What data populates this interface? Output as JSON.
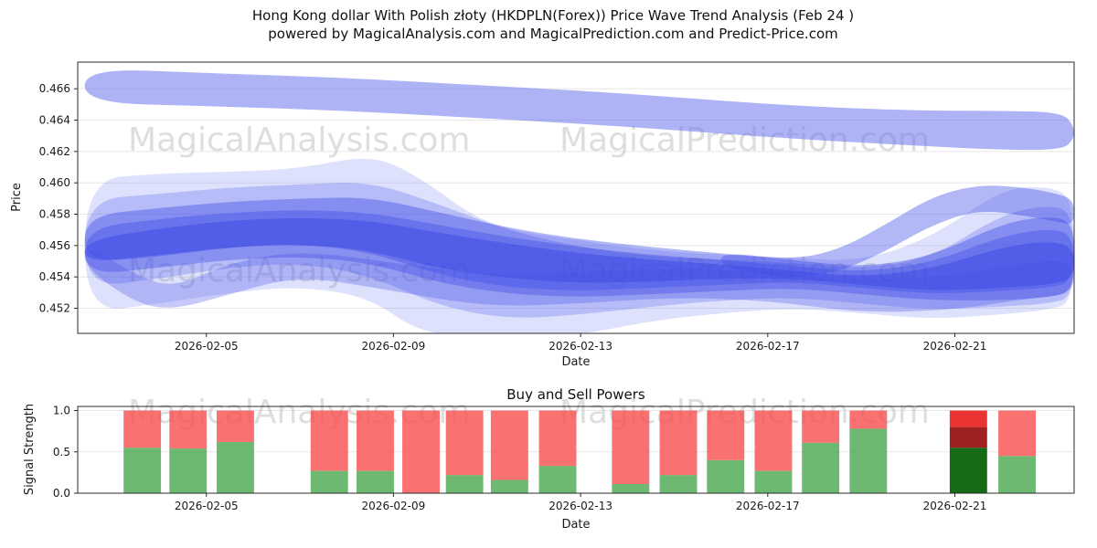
{
  "title": {
    "line1": "Hong Kong dollar With Polish złoty (HKDPLN(Forex)) Price Wave Trend Analysis (Feb 24 )",
    "line2": "powered by MagicalAnalysis.com and MagicalPrediction.com and Predict-Price.com"
  },
  "watermarks": {
    "analysis": "MagicalAnalysis.com",
    "prediction": "MagicalPrediction.com"
  },
  "colors": {
    "buy_green": "#49a84d",
    "sell_red": "#f94e4e",
    "grid": "#e7e7e7",
    "watermark": "#c9c9c9"
  },
  "chart_data": [
    {
      "type": "area",
      "name": "price_wave_trend",
      "xlabel": "Date",
      "ylabel": "Price",
      "x_domain": [
        -0.75,
        20.55
      ],
      "ylim": [
        0.4504,
        0.4677
      ],
      "y_ticks": [
        {
          "value": 0.452,
          "label": "0.452"
        },
        {
          "value": 0.454,
          "label": "0.454"
        },
        {
          "value": 0.456,
          "label": "0.456"
        },
        {
          "value": 0.458,
          "label": "0.458"
        },
        {
          "value": 0.46,
          "label": "0.460"
        },
        {
          "value": 0.462,
          "label": "0.462"
        },
        {
          "value": 0.464,
          "label": "0.464"
        },
        {
          "value": 0.466,
          "label": "0.466"
        }
      ],
      "x_ticks": [
        {
          "pos": 2,
          "label": "2026-02-05"
        },
        {
          "pos": 6,
          "label": "2026-02-09"
        },
        {
          "pos": 10,
          "label": "2026-02-13"
        },
        {
          "pos": 14,
          "label": "2026-02-17"
        },
        {
          "pos": 18,
          "label": "2026-02-21"
        }
      ],
      "bands": [
        {
          "name": "upper-forecast-band",
          "color": "#6b74ee",
          "opacity": 0.55,
          "x": [
            -0.6,
            2,
            5,
            8,
            11,
            14,
            17,
            19,
            20.3,
            20.55
          ],
          "upper": [
            0.4673,
            0.467,
            0.4667,
            0.4662,
            0.4657,
            0.465,
            0.4646,
            0.4646,
            0.4645,
            0.4636
          ],
          "lower": [
            0.4651,
            0.4649,
            0.4646,
            0.4641,
            0.4636,
            0.4629,
            0.4624,
            0.4621,
            0.4621,
            0.4628
          ]
        },
        {
          "name": "outer-envelope",
          "color": "#6b76f0",
          "opacity": 0.22,
          "x": [
            -0.6,
            1,
            2.5,
            4,
            5.5,
            6.5,
            8,
            10,
            11.5,
            13,
            14.5,
            16,
            17.5,
            19,
            20,
            20.55
          ],
          "upper": [
            0.4602,
            0.4606,
            0.4607,
            0.4609,
            0.4618,
            0.4605,
            0.4572,
            0.4563,
            0.4557,
            0.4554,
            0.4552,
            0.455,
            0.4565,
            0.4596,
            0.4598,
            0.459
          ],
          "lower": [
            0.4517,
            0.4523,
            0.453,
            0.4534,
            0.4527,
            0.4505,
            0.45,
            0.4503,
            0.4512,
            0.4517,
            0.452,
            0.4517,
            0.4513,
            0.4516,
            0.4519,
            0.4524
          ]
        },
        {
          "name": "mid-envelope",
          "color": "#5a66ec",
          "opacity": 0.3,
          "x": [
            -0.6,
            1,
            2.5,
            4,
            5.5,
            7,
            8.5,
            10,
            11.5,
            13,
            14.5,
            16,
            17.5,
            19,
            20,
            20.55
          ],
          "upper": [
            0.4589,
            0.4593,
            0.4597,
            0.4599,
            0.4601,
            0.4586,
            0.4569,
            0.4559,
            0.4553,
            0.4551,
            0.4549,
            0.4545,
            0.4552,
            0.458,
            0.4586,
            0.4581
          ],
          "lower": [
            0.4533,
            0.4539,
            0.4546,
            0.4549,
            0.4541,
            0.4521,
            0.4513,
            0.4516,
            0.4521,
            0.4525,
            0.4527,
            0.4523,
            0.4519,
            0.4521,
            0.4523,
            0.4527
          ]
        },
        {
          "name": "core-band-a",
          "color": "#3d49e6",
          "opacity": 0.4,
          "x": [
            -0.6,
            1,
            2.5,
            4,
            5.5,
            7,
            8.5,
            10,
            11.5,
            13,
            14.5,
            16,
            17.5,
            19,
            20,
            20.55
          ],
          "upper": [
            0.4579,
            0.4584,
            0.4588,
            0.459,
            0.4591,
            0.4581,
            0.4571,
            0.4564,
            0.4559,
            0.4555,
            0.4551,
            0.4546,
            0.4553,
            0.4574,
            0.4579,
            0.4575
          ],
          "lower": [
            0.4549,
            0.4553,
            0.4559,
            0.4561,
            0.4556,
            0.4541,
            0.4533,
            0.4531,
            0.4533,
            0.4535,
            0.4537,
            0.4533,
            0.4529,
            0.4531,
            0.4533,
            0.4537
          ]
        },
        {
          "name": "core-band-b",
          "color": "#3d49e6",
          "opacity": 0.38,
          "x": [
            -0.6,
            1,
            2.5,
            4,
            5.5,
            7,
            8.5,
            10,
            11.5,
            13,
            14.5,
            16,
            17.5,
            19,
            20,
            20.55
          ],
          "upper": [
            0.4571,
            0.4577,
            0.4581,
            0.4583,
            0.4581,
            0.4573,
            0.4565,
            0.4559,
            0.4554,
            0.4551,
            0.4547,
            0.4543,
            0.4549,
            0.4566,
            0.4571,
            0.4567
          ],
          "lower": [
            0.4541,
            0.4546,
            0.4551,
            0.4553,
            0.4549,
            0.4536,
            0.4529,
            0.4527,
            0.4529,
            0.4531,
            0.4533,
            0.4529,
            0.4525,
            0.4525,
            0.4527,
            0.4531
          ]
        },
        {
          "name": "core-band-c",
          "color": "#3540e2",
          "opacity": 0.42,
          "x": [
            -0.6,
            1,
            2.5,
            4,
            5.5,
            7,
            8.5,
            10,
            11.5,
            13,
            14.5,
            16,
            17.5,
            19,
            20,
            20.55
          ],
          "upper": [
            0.4563,
            0.4571,
            0.4576,
            0.4578,
            0.4576,
            0.4568,
            0.4561,
            0.4555,
            0.4551,
            0.4548,
            0.4544,
            0.454,
            0.4545,
            0.4559,
            0.4563,
            0.4559
          ],
          "lower": [
            0.4549,
            0.4554,
            0.4559,
            0.4561,
            0.4557,
            0.4545,
            0.4539,
            0.4536,
            0.4537,
            0.4539,
            0.4539,
            0.4535,
            0.4531,
            0.4533,
            0.4535,
            0.4539
          ]
        },
        {
          "name": "lower-strand",
          "color": "#4650e8",
          "opacity": 0.3,
          "x": [
            -0.6,
            0.5,
            1.3,
            2.5,
            4,
            6,
            8,
            10,
            12,
            14,
            16,
            18,
            19.5,
            20.55
          ],
          "upper": [
            0.4561,
            0.4541,
            0.4533,
            0.4549,
            0.4557,
            0.4549,
            0.4541,
            0.4543,
            0.4546,
            0.4543,
            0.4537,
            0.4541,
            0.4549,
            0.4551
          ],
          "lower": [
            0.4546,
            0.4523,
            0.4519,
            0.4529,
            0.4541,
            0.4531,
            0.4521,
            0.4523,
            0.4527,
            0.4525,
            0.4517,
            0.4519,
            0.4526,
            0.4529
          ]
        },
        {
          "name": "right-rise-strand",
          "color": "#3f4ae6",
          "opacity": 0.4,
          "x": [
            13,
            14.5,
            15.5,
            16.5,
            17.5,
            18.5,
            19.5,
            20.2,
            20.55
          ],
          "upper": [
            0.4556,
            0.4551,
            0.4557,
            0.4573,
            0.4591,
            0.4599,
            0.4597,
            0.4593,
            0.4589
          ],
          "lower": [
            0.4546,
            0.4539,
            0.4543,
            0.4556,
            0.4573,
            0.4583,
            0.4579,
            0.4575,
            0.4573
          ]
        }
      ]
    },
    {
      "type": "bar",
      "name": "buy_sell_powers",
      "title": "Buy and Sell Powers",
      "xlabel": "Date",
      "ylabel": "Signal Strength",
      "ylim": [
        0,
        1.05
      ],
      "bar_width": 0.8,
      "y_ticks": [
        {
          "value": 0.0,
          "label": "0.0"
        },
        {
          "value": 0.5,
          "label": "0.5"
        },
        {
          "value": 1.0,
          "label": "1.0"
        }
      ],
      "x_ticks": [
        {
          "pos": 2,
          "label": "2026-02-05"
        },
        {
          "pos": 6,
          "label": "2026-02-09"
        },
        {
          "pos": 10,
          "label": "2026-02-13"
        },
        {
          "pos": 14,
          "label": "2026-02-17"
        },
        {
          "pos": 18,
          "label": "2026-02-21"
        }
      ],
      "bars": [
        {
          "x": 0.63,
          "buy": 0.55,
          "sell": 0.45
        },
        {
          "x": 1.61,
          "buy": 0.54,
          "sell": 0.46
        },
        {
          "x": 2.62,
          "buy": 0.62,
          "sell": 0.38
        },
        {
          "x": 4.63,
          "buy": 0.27,
          "sell": 0.73
        },
        {
          "x": 5.61,
          "buy": 0.27,
          "sell": 0.73
        },
        {
          "x": 6.59,
          "buy": 0.0,
          "sell": 1.0
        },
        {
          "x": 7.52,
          "buy": 0.22,
          "sell": 0.78
        },
        {
          "x": 8.48,
          "buy": 0.16,
          "sell": 0.84
        },
        {
          "x": 9.51,
          "buy": 0.33,
          "sell": 0.67
        },
        {
          "x": 11.07,
          "buy": 0.11,
          "sell": 0.89
        },
        {
          "x": 12.09,
          "buy": 0.22,
          "sell": 0.78
        },
        {
          "x": 13.1,
          "buy": 0.4,
          "sell": 0.6
        },
        {
          "x": 14.12,
          "buy": 0.27,
          "sell": 0.73
        },
        {
          "x": 15.13,
          "buy": 0.61,
          "sell": 0.39
        },
        {
          "x": 16.15,
          "buy": 0.78,
          "sell": 0.22
        },
        {
          "x": 19.33,
          "buy": 0.45,
          "sell": 0.55
        }
      ],
      "special_bar": {
        "x": 18.29,
        "segments": [
          {
            "from": 0.0,
            "to": 0.55,
            "color": "#166b16"
          },
          {
            "from": 0.55,
            "to": 0.8,
            "color": "#9e2222"
          },
          {
            "from": 0.8,
            "to": 1.0,
            "color": "#ea3434"
          }
        ]
      }
    }
  ]
}
